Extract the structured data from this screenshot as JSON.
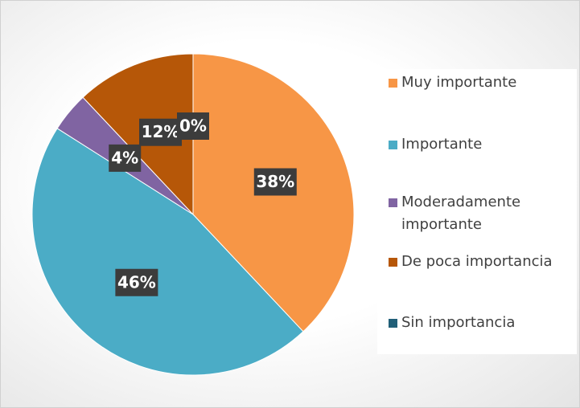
{
  "chart_data": {
    "type": "pie",
    "categories": [
      "Muy importante",
      "Importante",
      "Moderadamente importante",
      "De poca importancia",
      "Sin importancia"
    ],
    "values": [
      38,
      46,
      4,
      12,
      0
    ],
    "value_labels": [
      "38%",
      "46%",
      "4%",
      "12%",
      "0%"
    ],
    "colors": [
      "#F79646",
      "#4BACC6",
      "#8064A2",
      "#B65708",
      "#215F78"
    ],
    "legend": "right"
  }
}
